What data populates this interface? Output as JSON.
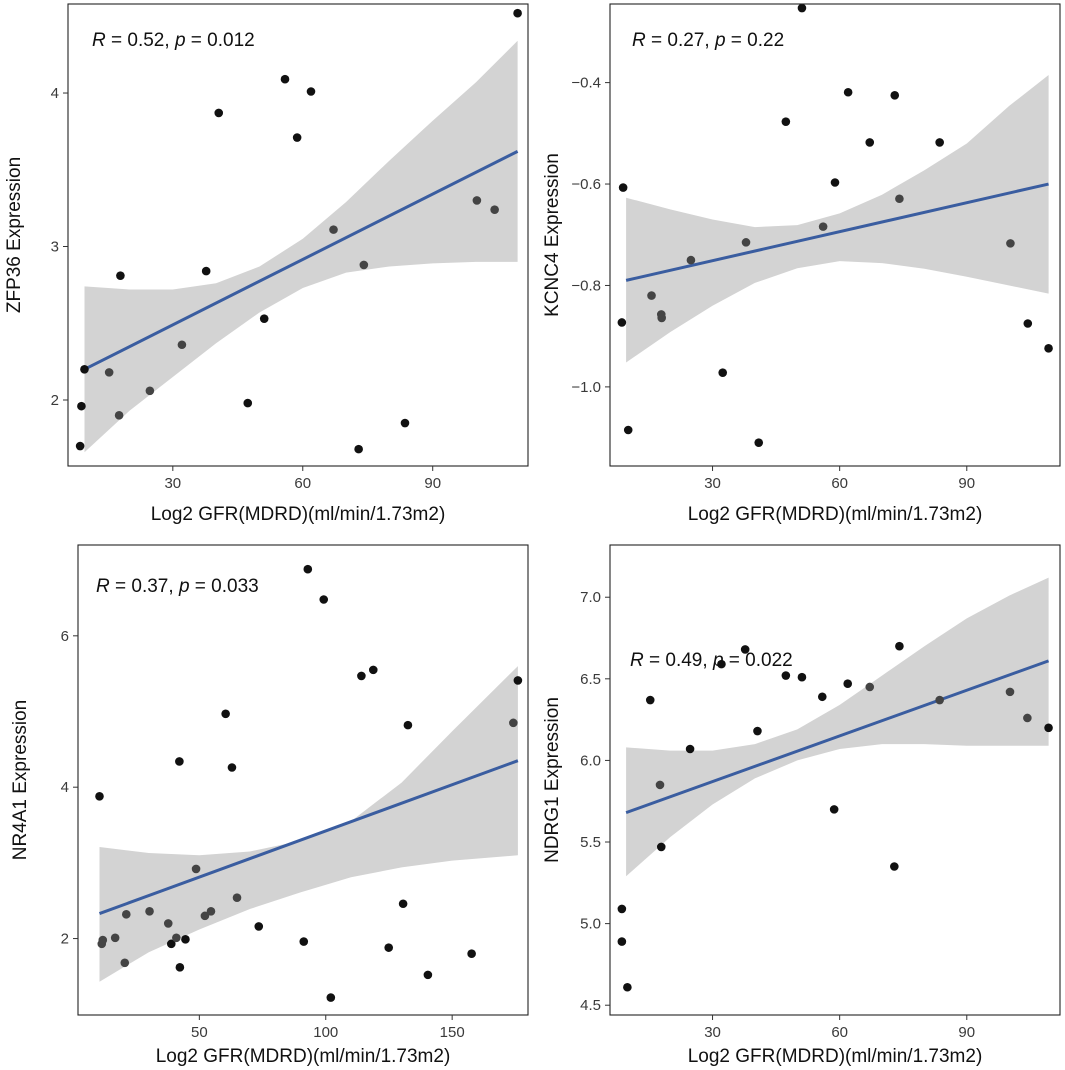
{
  "colors": {
    "confidence_band": "#d3d3d3",
    "fit_line": "#3a5da0",
    "point": "#111111",
    "point_inside_band": "#444444"
  },
  "chart_data": [
    {
      "id": "zfp36",
      "type": "scatter",
      "stat_label": {
        "r_symbol": "R",
        "r_text": " = 0.52, ",
        "p_symbol": "p",
        "p_text": " = 0.012"
      },
      "xlabel": "Log2 GFR(MDRD)(ml/min/1.73m2)",
      "ylabel": "ZFP36 Expression",
      "xlim": [
        5.8,
        112
      ],
      "ylim": [
        1.57,
        4.58
      ],
      "xticks": [
        30,
        60,
        90
      ],
      "yticks": [
        2,
        3,
        4
      ],
      "ytick_labels": [
        "2",
        "3",
        "4"
      ],
      "points": [
        [
          8.6,
          1.7
        ],
        [
          8.9,
          1.96
        ],
        [
          9.6,
          2.2
        ],
        [
          15.3,
          2.18
        ],
        [
          17.6,
          1.9
        ],
        [
          17.9,
          2.81
        ],
        [
          24.7,
          2.06
        ],
        [
          32.1,
          2.36
        ],
        [
          37.7,
          2.84
        ],
        [
          40.6,
          3.87
        ],
        [
          47.3,
          1.98
        ],
        [
          51.1,
          2.53
        ],
        [
          55.9,
          4.09
        ],
        [
          58.7,
          3.71
        ],
        [
          61.9,
          4.01
        ],
        [
          67.1,
          3.11
        ],
        [
          72.9,
          1.68
        ],
        [
          74.1,
          2.88
        ],
        [
          83.6,
          1.85
        ],
        [
          100.2,
          3.3
        ],
        [
          104.3,
          3.24
        ],
        [
          109.6,
          4.52
        ]
      ],
      "fit": {
        "x": [
          9.6,
          109.6
        ],
        "y": [
          2.2,
          3.62
        ]
      },
      "band": {
        "x": [
          9.6,
          20,
          30,
          40,
          50,
          60,
          70,
          80,
          90,
          100,
          109.6
        ],
        "lower": [
          1.66,
          1.93,
          2.15,
          2.37,
          2.57,
          2.73,
          2.83,
          2.87,
          2.89,
          2.9,
          2.9
        ],
        "upper": [
          2.74,
          2.72,
          2.72,
          2.76,
          2.87,
          3.05,
          3.29,
          3.56,
          3.82,
          4.07,
          4.34
        ]
      }
    },
    {
      "id": "kcnc4",
      "type": "scatter",
      "stat_label": {
        "r_symbol": "R",
        "r_text": " = 0.27, ",
        "p_symbol": "p",
        "p_text": " = 0.22"
      },
      "xlabel": "Log2 GFR(MDRD)(ml/min/1.73m2)",
      "ylabel": "KCNC4 Expression",
      "xlim": [
        5.8,
        112
      ],
      "ylim": [
        -1.156,
        -0.245
      ],
      "xticks": [
        30,
        60,
        90
      ],
      "yticks": [
        -1.0,
        -0.8,
        -0.6,
        -0.4
      ],
      "ytick_labels": [
        "−1.0",
        "−0.8",
        "−0.6",
        "−0.4"
      ],
      "points": [
        [
          8.6,
          -0.873
        ],
        [
          8.9,
          -0.607
        ],
        [
          10.1,
          -1.085
        ],
        [
          15.6,
          -0.82
        ],
        [
          17.9,
          -0.857
        ],
        [
          18.0,
          -0.864
        ],
        [
          24.9,
          -0.75
        ],
        [
          32.4,
          -0.972
        ],
        [
          37.9,
          -0.715
        ],
        [
          40.9,
          -1.11
        ],
        [
          47.3,
          -0.477
        ],
        [
          51.1,
          -0.253
        ],
        [
          56.1,
          -0.684
        ],
        [
          58.9,
          -0.597
        ],
        [
          62.0,
          -0.419
        ],
        [
          67.1,
          -0.518
        ],
        [
          73.0,
          -0.425
        ],
        [
          74.1,
          -0.629
        ],
        [
          83.6,
          -0.518
        ],
        [
          100.3,
          -0.717
        ],
        [
          104.4,
          -0.875
        ],
        [
          109.3,
          -0.924
        ]
      ],
      "fit": {
        "x": [
          9.6,
          109.3
        ],
        "y": [
          -0.79,
          -0.6
        ]
      },
      "band": {
        "x": [
          9.6,
          20,
          30,
          40,
          50,
          60,
          70,
          80,
          90,
          100,
          109.3
        ],
        "lower": [
          -0.952,
          -0.892,
          -0.84,
          -0.795,
          -0.766,
          -0.752,
          -0.756,
          -0.767,
          -0.783,
          -0.8,
          -0.816
        ],
        "upper": [
          -0.627,
          -0.65,
          -0.67,
          -0.685,
          -0.681,
          -0.658,
          -0.621,
          -0.573,
          -0.52,
          -0.446,
          -0.385
        ]
      }
    },
    {
      "id": "nr4a1",
      "type": "scatter",
      "stat_label": {
        "r_symbol": "R",
        "r_text": " = 0.37, ",
        "p_symbol": "p",
        "p_text": " = 0.033"
      },
      "xlabel": "Log2 GFR(MDRD)(ml/min/1.73m2)",
      "ylabel": "NR4A1 Expression",
      "xlim": [
        2,
        180
      ],
      "ylim": [
        0.99,
        7.2
      ],
      "xticks": [
        50,
        100,
        150
      ],
      "yticks": [
        2,
        4,
        6
      ],
      "ytick_labels": [
        "2",
        "4",
        "6"
      ],
      "points": [
        [
          10.5,
          3.88
        ],
        [
          11.4,
          1.93
        ],
        [
          11.8,
          1.98
        ],
        [
          16.7,
          2.01
        ],
        [
          20.5,
          1.68
        ],
        [
          21.1,
          2.32
        ],
        [
          30.3,
          2.36
        ],
        [
          37.7,
          2.2
        ],
        [
          38.9,
          1.93
        ],
        [
          40.9,
          2.01
        ],
        [
          42.1,
          4.34
        ],
        [
          42.3,
          1.62
        ],
        [
          44.5,
          1.99
        ],
        [
          48.7,
          2.92
        ],
        [
          52.2,
          2.3
        ],
        [
          54.6,
          2.36
        ],
        [
          60.4,
          4.97
        ],
        [
          62.9,
          4.26
        ],
        [
          64.9,
          2.54
        ],
        [
          73.5,
          2.16
        ],
        [
          91.3,
          1.96
        ],
        [
          92.9,
          6.88
        ],
        [
          99.2,
          6.48
        ],
        [
          102.0,
          1.22
        ],
        [
          114.1,
          5.47
        ],
        [
          118.8,
          5.55
        ],
        [
          124.9,
          1.88
        ],
        [
          130.6,
          2.46
        ],
        [
          132.5,
          4.82
        ],
        [
          140.4,
          1.52
        ],
        [
          157.7,
          1.8
        ],
        [
          174.2,
          4.85
        ],
        [
          176.0,
          5.41
        ]
      ],
      "fit": {
        "x": [
          10.5,
          176
        ],
        "y": [
          2.33,
          4.35
        ]
      },
      "band": {
        "x": [
          10.5,
          30,
          50,
          70,
          90,
          110,
          130,
          150,
          176
        ],
        "lower": [
          1.43,
          1.82,
          2.12,
          2.39,
          2.61,
          2.81,
          2.94,
          3.03,
          3.1
        ],
        "upper": [
          3.21,
          3.13,
          3.1,
          3.15,
          3.29,
          3.55,
          4.06,
          4.74,
          5.6
        ]
      }
    },
    {
      "id": "ndrg1",
      "type": "scatter",
      "stat_label": {
        "r_symbol": "R",
        "r_text": " = 0.49, ",
        "p_symbol": "p",
        "p_text": " = 0.022"
      },
      "xlabel": "Log2 GFR(MDRD)(ml/min/1.73m2)",
      "ylabel": "NDRG1 Expression",
      "xlim": [
        5.8,
        112
      ],
      "ylim": [
        4.44,
        7.32
      ],
      "xticks": [
        30,
        60,
        90
      ],
      "yticks": [
        4.5,
        5.0,
        5.5,
        6.0,
        6.5,
        7.0
      ],
      "ytick_labels": [
        "4.5",
        "5.0",
        "5.5",
        "6.0",
        "6.5",
        "7.0"
      ],
      "points": [
        [
          8.6,
          5.09
        ],
        [
          8.6,
          4.89
        ],
        [
          9.9,
          4.61
        ],
        [
          15.3,
          6.37
        ],
        [
          17.6,
          5.85
        ],
        [
          17.9,
          5.47
        ],
        [
          24.7,
          6.07
        ],
        [
          32.1,
          6.59
        ],
        [
          37.7,
          6.68
        ],
        [
          40.6,
          6.18
        ],
        [
          47.3,
          6.52
        ],
        [
          51.1,
          6.51
        ],
        [
          55.9,
          6.39
        ],
        [
          58.7,
          5.7
        ],
        [
          61.9,
          6.47
        ],
        [
          67.1,
          6.45
        ],
        [
          72.9,
          5.35
        ],
        [
          74.1,
          6.7
        ],
        [
          83.6,
          6.37
        ],
        [
          100.2,
          6.42
        ],
        [
          104.3,
          6.26
        ],
        [
          109.3,
          6.2
        ]
      ],
      "fit": {
        "x": [
          9.6,
          109.3
        ],
        "y": [
          5.68,
          6.61
        ]
      },
      "band": {
        "x": [
          9.6,
          20,
          30,
          40,
          50,
          60,
          70,
          80,
          90,
          100,
          109.3
        ],
        "lower": [
          5.29,
          5.53,
          5.73,
          5.89,
          6.0,
          6.07,
          6.1,
          6.1,
          6.09,
          6.09,
          6.09
        ],
        "upper": [
          6.08,
          6.06,
          6.06,
          6.1,
          6.19,
          6.34,
          6.52,
          6.7,
          6.87,
          7.01,
          7.12
        ]
      }
    }
  ]
}
